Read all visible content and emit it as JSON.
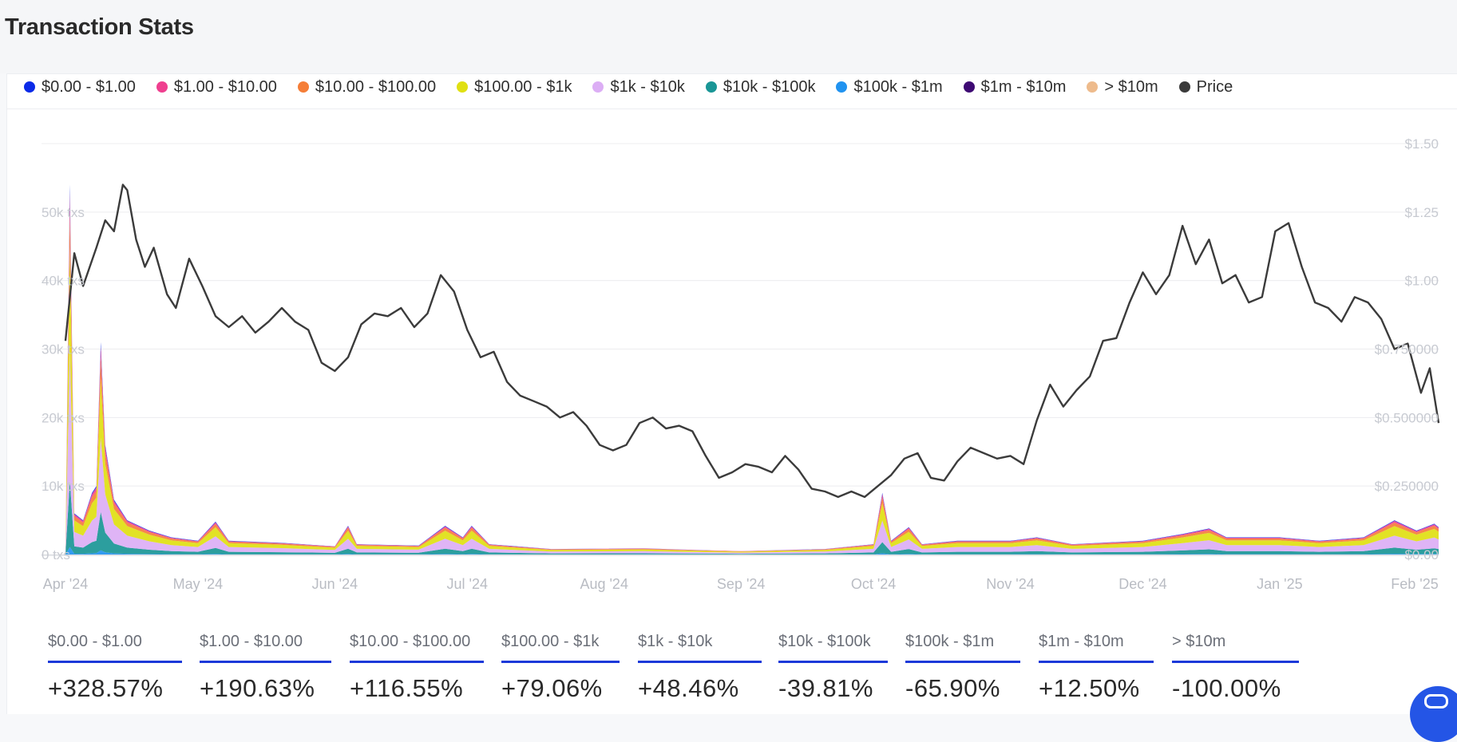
{
  "title": "Transaction Stats",
  "legend": [
    {
      "label": "$0.00 - $1.00",
      "color": "#0a2ae8"
    },
    {
      "label": "$1.00 - $10.00",
      "color": "#ef3f8f"
    },
    {
      "label": "$10.00 - $100.00",
      "color": "#f57e38"
    },
    {
      "label": "$100.00 - $1k",
      "color": "#e0e012"
    },
    {
      "label": "$1k - $10k",
      "color": "#dcaef5"
    },
    {
      "label": "$10k - $100k",
      "color": "#1a9696"
    },
    {
      "label": "$100k - $1m",
      "color": "#2193f0"
    },
    {
      "label": "$1m - $10m",
      "color": "#3e0a73"
    },
    {
      "label": "> $10m",
      "color": "#eebb8c"
    },
    {
      "label": "Price",
      "color": "#3b3b3b"
    }
  ],
  "chart_data": {
    "type": "area",
    "title": "Transaction Stats",
    "left_axis": {
      "label": "txs",
      "ticks": [
        "0 txs",
        "10k txs",
        "20k txs",
        "30k txs",
        "40k txs",
        "50k txs"
      ],
      "ylim": [
        0,
        60000
      ]
    },
    "right_axis": {
      "label": "Price",
      "ticks": [
        "$0.00",
        "$0.250000",
        "$0.500000",
        "$0.750000",
        "$1.00",
        "$1.25",
        "$1.50"
      ],
      "ylim": [
        0,
        1.5
      ]
    },
    "x_ticks": [
      "Apr '24",
      "May '24",
      "Jun '24",
      "Jul '24",
      "Aug '24",
      "Sep '24",
      "Oct '24",
      "Nov '24",
      "Dec '24",
      "Jan '25",
      "Feb '25"
    ],
    "x_start": "2024-04-01",
    "x_end": "2025-02-06",
    "price_series": {
      "name": "Price",
      "points": [
        [
          "2024-04-01",
          0.78
        ],
        [
          "2024-04-03",
          1.1
        ],
        [
          "2024-04-05",
          0.98
        ],
        [
          "2024-04-08",
          1.12
        ],
        [
          "2024-04-10",
          1.22
        ],
        [
          "2024-04-12",
          1.18
        ],
        [
          "2024-04-14",
          1.35
        ],
        [
          "2024-04-15",
          1.33
        ],
        [
          "2024-04-17",
          1.15
        ],
        [
          "2024-04-19",
          1.05
        ],
        [
          "2024-04-21",
          1.12
        ],
        [
          "2024-04-24",
          0.95
        ],
        [
          "2024-04-26",
          0.9
        ],
        [
          "2024-04-29",
          1.08
        ],
        [
          "2024-05-02",
          0.98
        ],
        [
          "2024-05-05",
          0.87
        ],
        [
          "2024-05-08",
          0.83
        ],
        [
          "2024-05-11",
          0.87
        ],
        [
          "2024-05-14",
          0.81
        ],
        [
          "2024-05-17",
          0.85
        ],
        [
          "2024-05-20",
          0.9
        ],
        [
          "2024-05-23",
          0.85
        ],
        [
          "2024-05-26",
          0.82
        ],
        [
          "2024-05-29",
          0.7
        ],
        [
          "2024-06-01",
          0.67
        ],
        [
          "2024-06-04",
          0.72
        ],
        [
          "2024-06-07",
          0.84
        ],
        [
          "2024-06-10",
          0.88
        ],
        [
          "2024-06-13",
          0.87
        ],
        [
          "2024-06-16",
          0.9
        ],
        [
          "2024-06-19",
          0.83
        ],
        [
          "2024-06-22",
          0.88
        ],
        [
          "2024-06-25",
          1.02
        ],
        [
          "2024-06-28",
          0.96
        ],
        [
          "2024-07-01",
          0.82
        ],
        [
          "2024-07-04",
          0.72
        ],
        [
          "2024-07-07",
          0.74
        ],
        [
          "2024-07-10",
          0.63
        ],
        [
          "2024-07-13",
          0.58
        ],
        [
          "2024-07-16",
          0.56
        ],
        [
          "2024-07-19",
          0.54
        ],
        [
          "2024-07-22",
          0.5
        ],
        [
          "2024-07-25",
          0.52
        ],
        [
          "2024-07-28",
          0.47
        ],
        [
          "2024-07-31",
          0.4
        ],
        [
          "2024-08-03",
          0.38
        ],
        [
          "2024-08-06",
          0.4
        ],
        [
          "2024-08-09",
          0.48
        ],
        [
          "2024-08-12",
          0.5
        ],
        [
          "2024-08-15",
          0.46
        ],
        [
          "2024-08-18",
          0.47
        ],
        [
          "2024-08-21",
          0.45
        ],
        [
          "2024-08-24",
          0.36
        ],
        [
          "2024-08-27",
          0.28
        ],
        [
          "2024-08-30",
          0.3
        ],
        [
          "2024-09-02",
          0.33
        ],
        [
          "2024-09-05",
          0.32
        ],
        [
          "2024-09-08",
          0.3
        ],
        [
          "2024-09-11",
          0.36
        ],
        [
          "2024-09-14",
          0.31
        ],
        [
          "2024-09-17",
          0.24
        ],
        [
          "2024-09-20",
          0.23
        ],
        [
          "2024-09-23",
          0.21
        ],
        [
          "2024-09-26",
          0.23
        ],
        [
          "2024-09-29",
          0.21
        ],
        [
          "2024-10-02",
          0.25
        ],
        [
          "2024-10-05",
          0.29
        ],
        [
          "2024-10-08",
          0.35
        ],
        [
          "2024-10-11",
          0.37
        ],
        [
          "2024-10-14",
          0.28
        ],
        [
          "2024-10-17",
          0.27
        ],
        [
          "2024-10-20",
          0.34
        ],
        [
          "2024-10-23",
          0.39
        ],
        [
          "2024-10-26",
          0.37
        ],
        [
          "2024-10-29",
          0.35
        ],
        [
          "2024-11-01",
          0.36
        ],
        [
          "2024-11-04",
          0.33
        ],
        [
          "2024-11-07",
          0.49
        ],
        [
          "2024-11-10",
          0.62
        ],
        [
          "2024-11-13",
          0.54
        ],
        [
          "2024-11-16",
          0.6
        ],
        [
          "2024-11-19",
          0.65
        ],
        [
          "2024-11-22",
          0.78
        ],
        [
          "2024-11-25",
          0.79
        ],
        [
          "2024-11-28",
          0.92
        ],
        [
          "2024-12-01",
          1.03
        ],
        [
          "2024-12-04",
          0.95
        ],
        [
          "2024-12-07",
          1.02
        ],
        [
          "2024-12-10",
          1.2
        ],
        [
          "2024-12-13",
          1.06
        ],
        [
          "2024-12-16",
          1.15
        ],
        [
          "2024-12-19",
          0.99
        ],
        [
          "2024-12-22",
          1.02
        ],
        [
          "2024-12-25",
          0.92
        ],
        [
          "2024-12-28",
          0.94
        ],
        [
          "2024-12-31",
          1.18
        ],
        [
          "2025-01-03",
          1.21
        ],
        [
          "2025-01-06",
          1.05
        ],
        [
          "2025-01-09",
          0.92
        ],
        [
          "2025-01-12",
          0.9
        ],
        [
          "2025-01-15",
          0.85
        ],
        [
          "2025-01-18",
          0.94
        ],
        [
          "2025-01-21",
          0.92
        ],
        [
          "2025-01-24",
          0.86
        ],
        [
          "2025-01-27",
          0.75
        ],
        [
          "2025-01-30",
          0.77
        ],
        [
          "2025-02-02",
          0.59
        ],
        [
          "2025-02-04",
          0.68
        ],
        [
          "2025-02-06",
          0.48
        ]
      ]
    },
    "tx_total_points": [
      [
        "2024-04-01",
        600
      ],
      [
        "2024-04-02",
        54000
      ],
      [
        "2024-04-03",
        6000
      ],
      [
        "2024-04-05",
        5000
      ],
      [
        "2024-04-07",
        9000
      ],
      [
        "2024-04-08",
        10000
      ],
      [
        "2024-04-09",
        31000
      ],
      [
        "2024-04-10",
        16000
      ],
      [
        "2024-04-12",
        8000
      ],
      [
        "2024-04-15",
        5000
      ],
      [
        "2024-04-20",
        3500
      ],
      [
        "2024-04-25",
        2500
      ],
      [
        "2024-05-01",
        2000
      ],
      [
        "2024-05-05",
        4800
      ],
      [
        "2024-05-08",
        2000
      ],
      [
        "2024-05-20",
        1700
      ],
      [
        "2024-06-01",
        1200
      ],
      [
        "2024-06-04",
        4200
      ],
      [
        "2024-06-06",
        1500
      ],
      [
        "2024-06-20",
        1300
      ],
      [
        "2024-06-26",
        4200
      ],
      [
        "2024-06-30",
        2500
      ],
      [
        "2024-07-02",
        4200
      ],
      [
        "2024-07-06",
        1500
      ],
      [
        "2024-07-20",
        800
      ],
      [
        "2024-08-10",
        900
      ],
      [
        "2024-08-20",
        700
      ],
      [
        "2024-09-01",
        500
      ],
      [
        "2024-09-20",
        800
      ],
      [
        "2024-10-01",
        1500
      ],
      [
        "2024-10-03",
        9000
      ],
      [
        "2024-10-05",
        2000
      ],
      [
        "2024-10-09",
        4000
      ],
      [
        "2024-10-12",
        1500
      ],
      [
        "2024-10-20",
        2000
      ],
      [
        "2024-11-01",
        2000
      ],
      [
        "2024-11-07",
        2500
      ],
      [
        "2024-11-15",
        1500
      ],
      [
        "2024-12-01",
        2000
      ],
      [
        "2024-12-10",
        3000
      ],
      [
        "2024-12-16",
        3800
      ],
      [
        "2024-12-20",
        2500
      ],
      [
        "2025-01-01",
        2500
      ],
      [
        "2025-01-10",
        2000
      ],
      [
        "2025-01-20",
        2500
      ],
      [
        "2025-01-27",
        5000
      ],
      [
        "2025-02-01",
        3500
      ],
      [
        "2025-02-05",
        4500
      ],
      [
        "2025-02-06",
        4000
      ]
    ],
    "band_shares": [
      {
        "name": "$100k - $1m",
        "share": 0.02
      },
      {
        "name": "$10k - $100k",
        "share": 0.18
      },
      {
        "name": "$1k - $10k",
        "share": 0.35
      },
      {
        "name": "$100.00 - $1k",
        "share": 0.28
      },
      {
        "name": "$10.00 - $100.00",
        "share": 0.1
      },
      {
        "name": "$1.00 - $10.00",
        "share": 0.05
      },
      {
        "name": "$0.00 - $1.00",
        "share": 0.02
      }
    ]
  },
  "stats": [
    {
      "label": "$0.00 - $1.00",
      "value": "+328.57%"
    },
    {
      "label": "$1.00 - $10.00",
      "value": "+190.63%"
    },
    {
      "label": "$10.00 - $100.00",
      "value": "+116.55%"
    },
    {
      "label": "$100.00 - $1k",
      "value": "+79.06%"
    },
    {
      "label": "$1k - $10k",
      "value": "+48.46%"
    },
    {
      "label": "$10k - $100k",
      "value": "-39.81%"
    },
    {
      "label": "$100k - $1m",
      "value": "-65.90%"
    },
    {
      "label": "$1m - $10m",
      "value": "+12.50%"
    },
    {
      "label": "> $10m",
      "value": "-100.00%"
    }
  ]
}
